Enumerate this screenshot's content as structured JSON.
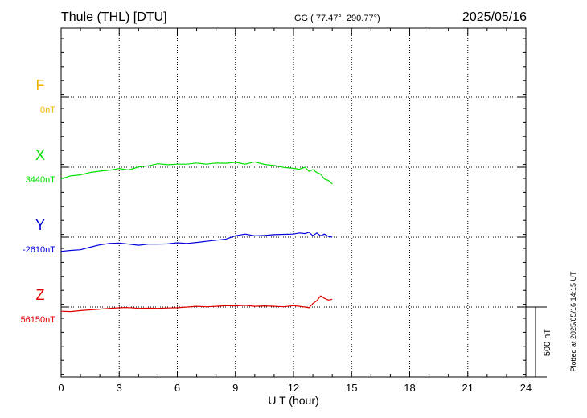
{
  "header": {
    "station": "Thule (THL)  [DTU]",
    "coords": "GG ( 77.47°, 290.77°)",
    "date": "2025/05/16"
  },
  "footer": {
    "plotted": "Plotted at 2025/05/16 14:15 UT"
  },
  "chart_data": {
    "type": "line",
    "xlabel": "U T (hour)",
    "xlim": [
      0,
      24
    ],
    "xticks": [
      0,
      3,
      6,
      9,
      12,
      15,
      18,
      21,
      24
    ],
    "scale_bar_label": "500 nT",
    "scale_bar_nT": 500,
    "grid": true,
    "series": [
      {
        "name": "F",
        "baseline_label": "0nT",
        "color": "#f0b400",
        "x": [],
        "y": []
      },
      {
        "name": "X",
        "baseline_label": "3440nT",
        "color": "#00e000",
        "x": [
          0,
          0.5,
          1,
          1.5,
          2,
          2.5,
          3,
          3.5,
          4,
          4.5,
          5,
          5.5,
          6,
          6.5,
          7,
          7.5,
          8,
          8.5,
          9,
          9.5,
          10,
          10.5,
          11,
          11.5,
          12,
          12.3,
          12.6,
          12.8,
          13,
          13.2,
          13.4,
          13.6,
          13.8,
          14
        ],
        "y": [
          3356,
          3378,
          3385,
          3402,
          3412,
          3418,
          3430,
          3420,
          3442,
          3450,
          3465,
          3458,
          3462,
          3462,
          3470,
          3462,
          3470,
          3468,
          3475,
          3462,
          3478,
          3460,
          3452,
          3438,
          3432,
          3425,
          3440,
          3410,
          3422,
          3402,
          3390,
          3355,
          3345,
          3320
        ]
      },
      {
        "name": "Y",
        "baseline_label": "-2610nT",
        "color": "#0000dd",
        "x": [
          0,
          0.5,
          1,
          1.5,
          2,
          2.5,
          3,
          3.5,
          4,
          4.5,
          5,
          5.5,
          6,
          6.5,
          7,
          7.5,
          8,
          8.5,
          9,
          9.5,
          10,
          10.5,
          11,
          11.5,
          12,
          12.3,
          12.6,
          12.8,
          13,
          13.2,
          13.4,
          13.6,
          13.8,
          14
        ],
        "y": [
          -2712,
          -2705,
          -2700,
          -2682,
          -2665,
          -2655,
          -2652,
          -2660,
          -2668,
          -2660,
          -2660,
          -2658,
          -2650,
          -2655,
          -2648,
          -2640,
          -2632,
          -2625,
          -2600,
          -2588,
          -2600,
          -2598,
          -2592,
          -2590,
          -2588,
          -2580,
          -2585,
          -2575,
          -2600,
          -2580,
          -2600,
          -2588,
          -2605,
          -2610
        ]
      },
      {
        "name": "Z",
        "baseline_label": "56150nT",
        "color": "#e00000",
        "x": [
          0,
          0.5,
          1,
          1.5,
          2,
          2.5,
          3,
          3.5,
          4,
          4.5,
          5,
          5.5,
          6,
          6.5,
          7,
          7.5,
          8,
          8.5,
          9,
          9.5,
          10,
          10.5,
          11,
          11.5,
          12,
          12.3,
          12.6,
          12.8,
          13,
          13.2,
          13.4,
          13.6,
          13.8,
          14
        ],
        "y": [
          56120,
          56118,
          56125,
          56130,
          56135,
          56140,
          56145,
          56146,
          56140,
          56142,
          56140,
          56143,
          56145,
          56150,
          56155,
          56152,
          56155,
          56160,
          56158,
          56162,
          56155,
          56158,
          56155,
          56152,
          56160,
          56155,
          56150,
          56145,
          56175,
          56195,
          56230,
          56212,
          56200,
          56205
        ]
      }
    ]
  }
}
